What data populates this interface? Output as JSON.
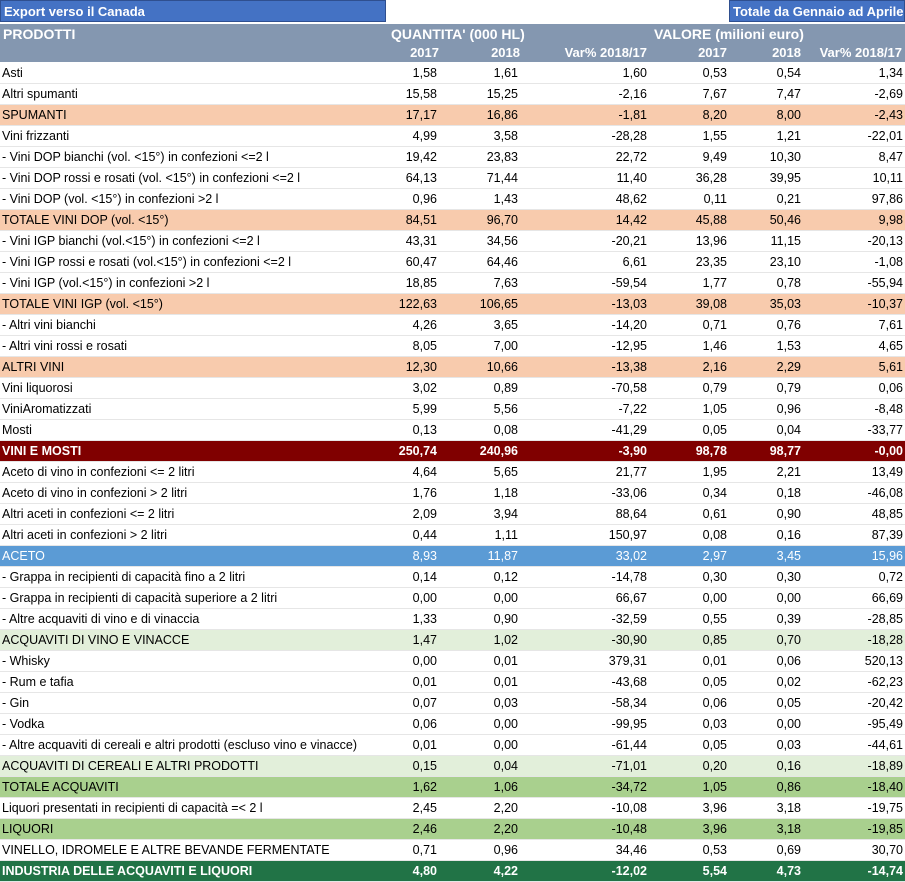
{
  "header": {
    "export_label": "Export verso il Canada",
    "period_label": "Totale da Gennaio ad Aprile",
    "products_label": "PRODOTTI",
    "quantity_label": "QUANTITA' (000 HL)",
    "value_label": "VALORE (milioni euro)",
    "col_2017": "2017",
    "col_2018": "2018",
    "col_var": "Var% 2018/17"
  },
  "rows": [
    {
      "style": "normal",
      "label": "Asti",
      "q2017": "1,58",
      "q2018": "1,61",
      "qvar": "1,60",
      "v2017": "0,53",
      "v2018": "0,54",
      "vvar": "1,34"
    },
    {
      "style": "normal",
      "label": "Altri spumanti",
      "q2017": "15,58",
      "q2018": "15,25",
      "qvar": "-2,16",
      "v2017": "7,67",
      "v2018": "7,47",
      "vvar": "-2,69"
    },
    {
      "style": "peach",
      "label": "SPUMANTI",
      "q2017": "17,17",
      "q2018": "16,86",
      "qvar": "-1,81",
      "v2017": "8,20",
      "v2018": "8,00",
      "vvar": "-2,43"
    },
    {
      "style": "normal",
      "label": "Vini frizzanti",
      "q2017": "4,99",
      "q2018": "3,58",
      "qvar": "-28,28",
      "v2017": "1,55",
      "v2018": "1,21",
      "vvar": "-22,01"
    },
    {
      "style": "normal",
      "label": "- Vini DOP bianchi (vol. <15°) in confezioni <=2 l",
      "q2017": "19,42",
      "q2018": "23,83",
      "qvar": "22,72",
      "v2017": "9,49",
      "v2018": "10,30",
      "vvar": "8,47"
    },
    {
      "style": "normal",
      "label": "- Vini DOP rossi e rosati (vol. <15°) in confezioni <=2 l",
      "q2017": "64,13",
      "q2018": "71,44",
      "qvar": "11,40",
      "v2017": "36,28",
      "v2018": "39,95",
      "vvar": "10,11"
    },
    {
      "style": "normal",
      "label": "- Vini DOP (vol. <15°) in confezioni >2 l",
      "q2017": "0,96",
      "q2018": "1,43",
      "qvar": "48,62",
      "v2017": "0,11",
      "v2018": "0,21",
      "vvar": "97,86"
    },
    {
      "style": "peach",
      "label": "TOTALE VINI DOP (vol. <15°)",
      "q2017": "84,51",
      "q2018": "96,70",
      "qvar": "14,42",
      "v2017": "45,88",
      "v2018": "50,46",
      "vvar": "9,98"
    },
    {
      "style": "normal",
      "label": "- Vini IGP bianchi (vol.<15°) in confezioni <=2 l",
      "q2017": "43,31",
      "q2018": "34,56",
      "qvar": "-20,21",
      "v2017": "13,96",
      "v2018": "11,15",
      "vvar": "-20,13"
    },
    {
      "style": "normal",
      "label": "- Vini IGP rossi e rosati (vol.<15°) in confezioni <=2 l",
      "q2017": "60,47",
      "q2018": "64,46",
      "qvar": "6,61",
      "v2017": "23,35",
      "v2018": "23,10",
      "vvar": "-1,08"
    },
    {
      "style": "normal",
      "label": "- Vini IGP (vol.<15°) in confezioni >2 l",
      "q2017": "18,85",
      "q2018": "7,63",
      "qvar": "-59,54",
      "v2017": "1,77",
      "v2018": "0,78",
      "vvar": "-55,94"
    },
    {
      "style": "peach",
      "label": "TOTALE VINI IGP (vol. <15°)",
      "q2017": "122,63",
      "q2018": "106,65",
      "qvar": "-13,03",
      "v2017": "39,08",
      "v2018": "35,03",
      "vvar": "-10,37"
    },
    {
      "style": "normal",
      "label": "- Altri vini bianchi",
      "q2017": "4,26",
      "q2018": "3,65",
      "qvar": "-14,20",
      "v2017": "0,71",
      "v2018": "0,76",
      "vvar": "7,61"
    },
    {
      "style": "normal",
      "label": "- Altri vini rossi e rosati",
      "q2017": "8,05",
      "q2018": "7,00",
      "qvar": "-12,95",
      "v2017": "1,46",
      "v2018": "1,53",
      "vvar": "4,65"
    },
    {
      "style": "peach",
      "label": "ALTRI VINI",
      "q2017": "12,30",
      "q2018": "10,66",
      "qvar": "-13,38",
      "v2017": "2,16",
      "v2018": "2,29",
      "vvar": "5,61"
    },
    {
      "style": "normal",
      "label": "Vini liquorosi",
      "q2017": "3,02",
      "q2018": "0,89",
      "qvar": "-70,58",
      "v2017": "0,79",
      "v2018": "0,79",
      "vvar": "0,06"
    },
    {
      "style": "normal",
      "label": "ViniAromatizzati",
      "q2017": "5,99",
      "q2018": "5,56",
      "qvar": "-7,22",
      "v2017": "1,05",
      "v2018": "0,96",
      "vvar": "-8,48"
    },
    {
      "style": "normal",
      "label": "Mosti",
      "q2017": "0,13",
      "q2018": "0,08",
      "qvar": "-41,29",
      "v2017": "0,05",
      "v2018": "0,04",
      "vvar": "-33,77"
    },
    {
      "style": "maroon",
      "label": "VINI E MOSTI",
      "q2017": "250,74",
      "q2018": "240,96",
      "qvar": "-3,90",
      "v2017": "98,78",
      "v2018": "98,77",
      "vvar": "-0,00"
    },
    {
      "style": "normal",
      "label": "Aceto di vino in confezioni <= 2 litri",
      "q2017": "4,64",
      "q2018": "5,65",
      "qvar": "21,77",
      "v2017": "1,95",
      "v2018": "2,21",
      "vvar": "13,49"
    },
    {
      "style": "normal",
      "label": "Aceto di vino in confezioni > 2 litri",
      "q2017": "1,76",
      "q2018": "1,18",
      "qvar": "-33,06",
      "v2017": "0,34",
      "v2018": "0,18",
      "vvar": "-46,08"
    },
    {
      "style": "normal",
      "label": "Altri aceti  in confezioni <= 2 litri",
      "q2017": "2,09",
      "q2018": "3,94",
      "qvar": "88,64",
      "v2017": "0,61",
      "v2018": "0,90",
      "vvar": "48,85"
    },
    {
      "style": "normal",
      "label": "Altri aceti in confezioni > 2 litri",
      "q2017": "0,44",
      "q2018": "1,11",
      "qvar": "150,97",
      "v2017": "0,08",
      "v2018": "0,16",
      "vvar": "87,39"
    },
    {
      "style": "blue",
      "label": "ACETO",
      "q2017": "8,93",
      "q2018": "11,87",
      "qvar": "33,02",
      "v2017": "2,97",
      "v2018": "3,45",
      "vvar": "15,96"
    },
    {
      "style": "normal",
      "label": "- Grappa in recipienti di capacità fino a 2 litri",
      "q2017": "0,14",
      "q2018": "0,12",
      "qvar": "-14,78",
      "v2017": "0,30",
      "v2018": "0,30",
      "vvar": "0,72"
    },
    {
      "style": "normal",
      "label": "- Grappa in recipienti di capacità superiore a 2 litri",
      "q2017": "0,00",
      "q2018": "0,00",
      "qvar": "66,67",
      "v2017": "0,00",
      "v2018": "0,00",
      "vvar": "66,69"
    },
    {
      "style": "normal",
      "label": "- Altre acquaviti di vino e di vinaccia",
      "q2017": "1,33",
      "q2018": "0,90",
      "qvar": "-32,59",
      "v2017": "0,55",
      "v2018": "0,39",
      "vvar": "-28,85"
    },
    {
      "style": "lightgreen",
      "label": "ACQUAVITI DI VINO E VINACCE",
      "q2017": "1,47",
      "q2018": "1,02",
      "qvar": "-30,90",
      "v2017": "0,85",
      "v2018": "0,70",
      "vvar": "-18,28"
    },
    {
      "style": "normal",
      "label": "- Whisky",
      "q2017": "0,00",
      "q2018": "0,01",
      "qvar": "379,31",
      "v2017": "0,01",
      "v2018": "0,06",
      "vvar": "520,13"
    },
    {
      "style": "normal",
      "label": "- Rum e tafia",
      "q2017": "0,01",
      "q2018": "0,01",
      "qvar": "-43,68",
      "v2017": "0,05",
      "v2018": "0,02",
      "vvar": "-62,23"
    },
    {
      "style": "normal",
      "label": "- Gin",
      "q2017": "0,07",
      "q2018": "0,03",
      "qvar": "-58,34",
      "v2017": "0,06",
      "v2018": "0,05",
      "vvar": "-20,42"
    },
    {
      "style": "normal",
      "label": "- Vodka",
      "q2017": "0,06",
      "q2018": "0,00",
      "qvar": "-99,95",
      "v2017": "0,03",
      "v2018": "0,00",
      "vvar": "-95,49"
    },
    {
      "style": "normal",
      "label": "- Altre acquaviti di cereali e altri prodotti (escluso vino e vinacce)",
      "q2017": "0,01",
      "q2018": "0,00",
      "qvar": "-61,44",
      "v2017": "0,05",
      "v2018": "0,03",
      "vvar": "-44,61"
    },
    {
      "style": "lightgreen",
      "label": "ACQUAVITI DI CEREALI E ALTRI PRODOTTI",
      "q2017": "0,15",
      "q2018": "0,04",
      "qvar": "-71,01",
      "v2017": "0,20",
      "v2018": "0,16",
      "vvar": "-18,89"
    },
    {
      "style": "green",
      "label": "TOTALE ACQUAVITI",
      "q2017": "1,62",
      "q2018": "1,06",
      "qvar": "-34,72",
      "v2017": "1,05",
      "v2018": "0,86",
      "vvar": "-18,40"
    },
    {
      "style": "normal",
      "label": "Liquori presentati in recipienti di capacità =< 2 l",
      "q2017": "2,45",
      "q2018": "2,20",
      "qvar": "-10,08",
      "v2017": "3,96",
      "v2018": "3,18",
      "vvar": "-19,75"
    },
    {
      "style": "green",
      "label": "LIQUORI",
      "q2017": "2,46",
      "q2018": "2,20",
      "qvar": "-10,48",
      "v2017": "3,96",
      "v2018": "3,18",
      "vvar": "-19,85"
    },
    {
      "style": "normal",
      "label": "VINELLO, IDROMELE E ALTRE BEVANDE FERMENTATE",
      "q2017": "0,71",
      "q2018": "0,96",
      "qvar": "34,46",
      "v2017": "0,53",
      "v2018": "0,69",
      "vvar": "30,70"
    },
    {
      "style": "darkgreen",
      "label": "INDUSTRIA DELLE ACQUAVITI E LIQUORI",
      "q2017": "4,80",
      "q2018": "4,22",
      "qvar": "-12,02",
      "v2017": "5,54",
      "v2018": "4,73",
      "vvar": "-14,74"
    }
  ]
}
